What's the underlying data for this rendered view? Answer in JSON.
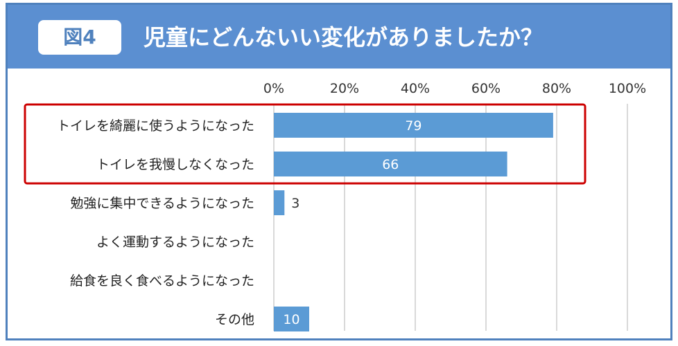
{
  "header": {
    "figure_label": "図4",
    "title": "児童にどんないい変化がありましたか？"
  },
  "colors": {
    "bar": "#5b9bd5",
    "header": "#5b8fd1",
    "highlight": "#cc0000",
    "grid": "#d9d9d9"
  },
  "chart_data": {
    "type": "bar",
    "orientation": "horizontal",
    "categories": [
      "トイレを綺麗に使うようになった",
      "トイレを我慢しなくなった",
      "勉強に集中できるようになった",
      "よく運動するようになった",
      "給食を良く食べるようになった",
      "その他"
    ],
    "values": [
      79,
      66,
      3,
      null,
      null,
      10
    ],
    "value_labels": [
      "79",
      "66",
      "3",
      "",
      "",
      "10"
    ],
    "xlim": [
      0,
      100
    ],
    "xticks": [
      "0%",
      "20%",
      "40%",
      "60%",
      "80%",
      "100%"
    ],
    "grid": true,
    "highlighted_categories": [
      0,
      1
    ]
  }
}
